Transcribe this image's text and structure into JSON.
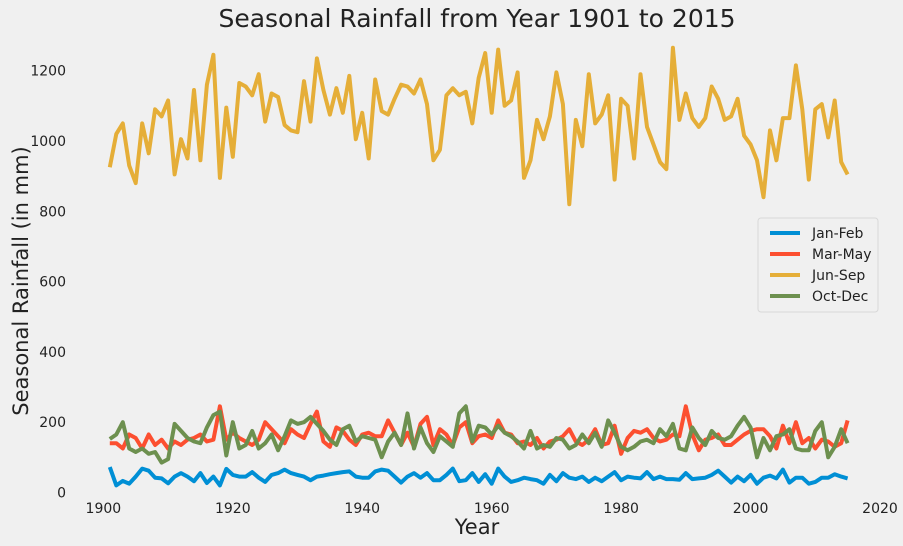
{
  "chart_data": {
    "type": "line",
    "title": "Seasonal Rainfall from Year 1901 to 2015",
    "xlabel": "Year",
    "ylabel": "Seasonal Rainfall (in mm)",
    "xlim": [
      1895,
      2020
    ],
    "ylim": [
      -30,
      1310
    ],
    "xticks": [
      1900,
      1920,
      1940,
      1960,
      1980,
      2000,
      2020
    ],
    "yticks": [
      0,
      200,
      400,
      600,
      800,
      1000,
      1200
    ],
    "grid": false,
    "legend_position": "center-right",
    "x": [
      1901,
      1902,
      1903,
      1904,
      1905,
      1906,
      1907,
      1908,
      1909,
      1910,
      1911,
      1912,
      1913,
      1914,
      1915,
      1916,
      1917,
      1918,
      1919,
      1920,
      1921,
      1922,
      1923,
      1924,
      1925,
      1926,
      1927,
      1928,
      1929,
      1930,
      1931,
      1932,
      1933,
      1934,
      1935,
      1936,
      1937,
      1938,
      1939,
      1940,
      1941,
      1942,
      1943,
      1944,
      1945,
      1946,
      1947,
      1948,
      1949,
      1950,
      1951,
      1952,
      1953,
      1954,
      1955,
      1956,
      1957,
      1958,
      1959,
      1960,
      1961,
      1962,
      1963,
      1964,
      1965,
      1966,
      1967,
      1968,
      1969,
      1970,
      1971,
      1972,
      1973,
      1974,
      1975,
      1976,
      1977,
      1978,
      1979,
      1980,
      1981,
      1982,
      1983,
      1984,
      1985,
      1986,
      1987,
      1988,
      1989,
      1990,
      1991,
      1992,
      1993,
      1994,
      1995,
      1996,
      1997,
      1998,
      1999,
      2000,
      2001,
      2002,
      2003,
      2004,
      2005,
      2006,
      2007,
      2008,
      2009,
      2010,
      2011,
      2012,
      2013,
      2014,
      2015
    ],
    "series": [
      {
        "name": "Jan-Feb",
        "color": "#008fd5",
        "values": [
          72,
          20,
          33,
          25,
          45,
          68,
          62,
          42,
          40,
          26,
          45,
          55,
          45,
          32,
          55,
          27,
          45,
          20,
          67,
          50,
          45,
          45,
          58,
          42,
          30,
          50,
          55,
          65,
          55,
          50,
          45,
          35,
          45,
          48,
          52,
          55,
          58,
          60,
          45,
          42,
          42,
          60,
          65,
          62,
          45,
          28,
          45,
          55,
          42,
          55,
          35,
          35,
          50,
          68,
          32,
          35,
          55,
          30,
          52,
          25,
          68,
          45,
          30,
          35,
          42,
          38,
          35,
          25,
          50,
          32,
          55,
          42,
          38,
          45,
          30,
          42,
          32,
          45,
          58,
          35,
          45,
          42,
          40,
          58,
          38,
          45,
          38,
          38,
          36,
          55,
          38,
          40,
          42,
          50,
          62,
          45,
          28,
          45,
          32,
          50,
          25,
          42,
          48,
          40,
          65,
          28,
          42,
          42,
          25,
          30,
          42,
          42,
          52,
          45,
          40
        ]
      },
      {
        "name": "Mar-May",
        "color": "#fc4f30",
        "values": [
          140,
          140,
          125,
          165,
          155,
          125,
          165,
          135,
          150,
          125,
          145,
          135,
          150,
          155,
          165,
          145,
          150,
          245,
          150,
          170,
          155,
          145,
          135,
          150,
          200,
          180,
          160,
          140,
          180,
          165,
          155,
          195,
          230,
          145,
          130,
          185,
          175,
          150,
          135,
          165,
          170,
          160,
          160,
          205,
          170,
          135,
          170,
          130,
          195,
          215,
          135,
          180,
          165,
          135,
          185,
          200,
          140,
          160,
          165,
          155,
          205,
          170,
          165,
          140,
          145,
          135,
          155,
          125,
          145,
          150,
          160,
          180,
          145,
          135,
          150,
          180,
          135,
          140,
          190,
          110,
          155,
          175,
          170,
          180,
          155,
          145,
          150,
          165,
          160,
          245,
          165,
          120,
          150,
          155,
          165,
          135,
          135,
          150,
          165,
          175,
          180,
          180,
          160,
          125,
          190,
          140,
          200,
          140,
          155,
          125,
          150,
          145,
          130,
          140,
          205
        ]
      },
      {
        "name": "Jun-Sep",
        "color": "#e5ae38",
        "values": [
          925,
          1020,
          1050,
          930,
          880,
          1050,
          965,
          1090,
          1070,
          1115,
          905,
          1005,
          950,
          1145,
          945,
          1160,
          1245,
          895,
          1095,
          955,
          1165,
          1155,
          1130,
          1190,
          1055,
          1135,
          1125,
          1045,
          1030,
          1025,
          1170,
          1055,
          1235,
          1145,
          1075,
          1150,
          1080,
          1185,
          1005,
          1080,
          950,
          1175,
          1085,
          1075,
          1120,
          1160,
          1155,
          1135,
          1175,
          1105,
          945,
          975,
          1130,
          1150,
          1130,
          1140,
          1050,
          1180,
          1250,
          1080,
          1260,
          1100,
          1115,
          1195,
          895,
          945,
          1060,
          1005,
          1070,
          1195,
          1105,
          820,
          1060,
          985,
          1190,
          1050,
          1075,
          1130,
          890,
          1120,
          1100,
          950,
          1190,
          1040,
          990,
          940,
          920,
          1265,
          1060,
          1135,
          1065,
          1040,
          1065,
          1155,
          1120,
          1060,
          1070,
          1120,
          1015,
          990,
          945,
          840,
          1030,
          945,
          1065,
          1065,
          1215,
          1090,
          890,
          1090,
          1105,
          1010,
          1115,
          940,
          905
        ]
      },
      {
        "name": "Oct-Dec",
        "color": "#6d904f",
        "values": [
          152,
          165,
          200,
          125,
          115,
          125,
          110,
          115,
          85,
          95,
          195,
          175,
          155,
          145,
          140,
          185,
          220,
          230,
          105,
          200,
          125,
          135,
          175,
          125,
          140,
          165,
          120,
          160,
          205,
          195,
          200,
          215,
          195,
          175,
          150,
          135,
          180,
          190,
          145,
          160,
          155,
          150,
          100,
          145,
          170,
          135,
          225,
          125,
          185,
          140,
          115,
          160,
          145,
          130,
          225,
          245,
          145,
          190,
          185,
          165,
          190,
          170,
          160,
          145,
          125,
          175,
          125,
          135,
          130,
          155,
          150,
          125,
          135,
          165,
          140,
          170,
          130,
          205,
          170,
          130,
          120,
          130,
          145,
          150,
          140,
          180,
          160,
          195,
          125,
          120,
          185,
          155,
          135,
          175,
          155,
          150,
          160,
          190,
          215,
          185,
          100,
          155,
          120,
          160,
          165,
          180,
          125,
          120,
          120,
          175,
          200,
          100,
          130,
          180,
          140
        ]
      }
    ]
  }
}
